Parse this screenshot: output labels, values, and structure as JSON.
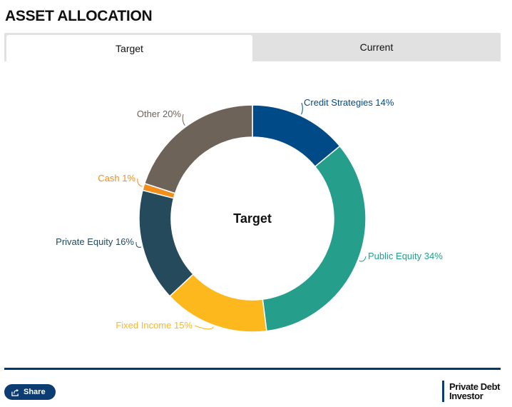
{
  "page": {
    "title": "ASSET ALLOCATION"
  },
  "tabs": [
    {
      "label": "Target",
      "active": true
    },
    {
      "label": "Current",
      "active": false
    }
  ],
  "chart_data": {
    "type": "pie",
    "title": "Target",
    "donut": true,
    "start_angle_deg": 0,
    "slices": [
      {
        "label": "Credit Strategies 14%",
        "name": "Credit Strategies",
        "value": 14,
        "color": "#004a87"
      },
      {
        "label": "Public Equity 34%",
        "name": "Public Equity",
        "value": 34,
        "color": "#269e8c"
      },
      {
        "label": "Fixed Income 15%",
        "name": "Fixed Income",
        "value": 15,
        "color": "#fdb81e"
      },
      {
        "label": "Private Equity 16%",
        "name": "Private Equity",
        "value": 16,
        "color": "#244a5c"
      },
      {
        "label": "Cash 1%",
        "name": "Cash",
        "value": 1,
        "color": "#f28e1b"
      },
      {
        "label": "Other 20%",
        "name": "Other",
        "value": 20,
        "color": "#6e6359"
      }
    ]
  },
  "footer": {
    "share_label": "Share",
    "logo_line1": "Private Debt",
    "logo_line2": "Investor"
  }
}
